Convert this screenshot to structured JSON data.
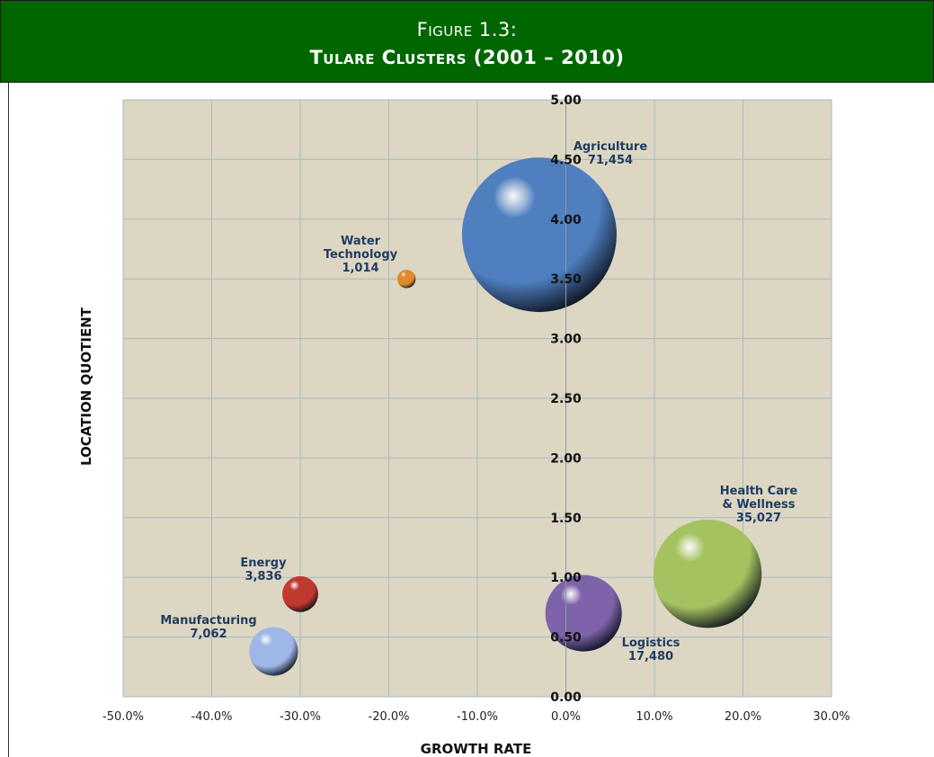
{
  "figure": {
    "number": "Figure 1.3:",
    "title": "Tulare Clusters (2001 – 2010)"
  },
  "colors": {
    "header_bg": "#006600",
    "plot_bg": "#dcd6c3",
    "grid": "#a9b9c3",
    "label_text": "#1f3b5e"
  },
  "chart_data": {
    "type": "scatter",
    "subtype": "bubble",
    "xlabel": "GROWTH RATE",
    "ylabel": "LOCATION QUOTIENT",
    "xlim": [
      -0.5,
      0.3
    ],
    "ylim": [
      0,
      5
    ],
    "x_ticks": [
      "-50.0%",
      "-40.0%",
      "-30.0%",
      "-20.0%",
      "-10.0%",
      "0.0%",
      "10.0%",
      "20.0%",
      "30.0%"
    ],
    "y_ticks": [
      "0.00",
      "0.50",
      "1.00",
      "1.50",
      "2.00",
      "2.50",
      "3.00",
      "3.50",
      "4.00",
      "4.50",
      "5.00"
    ],
    "grid": true,
    "series": [
      {
        "name": "Agriculture",
        "label": [
          "Agriculture",
          "71,454"
        ],
        "x": -0.03,
        "y": 3.87,
        "size": 71454,
        "color": "#4f7fbf"
      },
      {
        "name": "Water Technology",
        "label": [
          "Water",
          "Technology",
          "1,014"
        ],
        "x": -0.18,
        "y": 3.5,
        "size": 1014,
        "color": "#e08a2c"
      },
      {
        "name": "Health Care & Wellness",
        "label": [
          "Health Care",
          "& Wellness",
          "35,027"
        ],
        "x": 0.16,
        "y": 1.03,
        "size": 35027,
        "color": "#a4c260"
      },
      {
        "name": "Logistics",
        "label": [
          "Logistics",
          "17,480"
        ],
        "x": 0.02,
        "y": 0.7,
        "size": 17480,
        "color": "#7e63aa"
      },
      {
        "name": "Energy",
        "label": [
          "Energy",
          "3,836"
        ],
        "x": -0.3,
        "y": 0.86,
        "size": 3836,
        "color": "#c0392f"
      },
      {
        "name": "Manufacturing",
        "label": [
          "Manufacturing",
          "7,062"
        ],
        "x": -0.33,
        "y": 0.38,
        "size": 7062,
        "color": "#9eb7e6"
      }
    ]
  }
}
